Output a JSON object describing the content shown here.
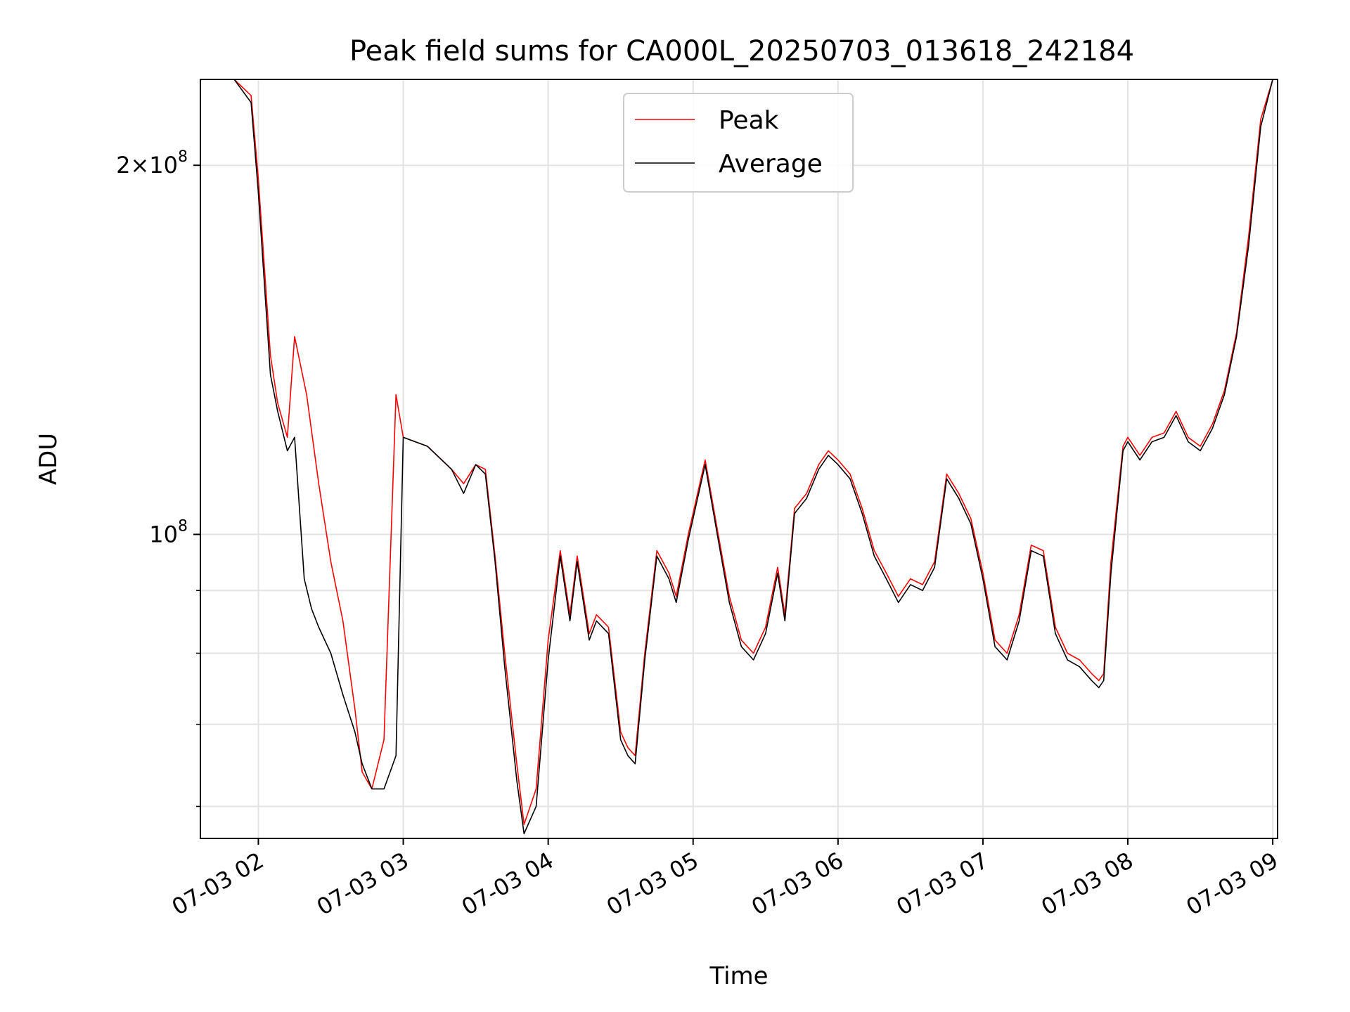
{
  "chart_data": {
    "type": "line",
    "title": "Peak field sums for CA000L_20250703_013618_242184",
    "xlabel": "Time",
    "ylabel": "ADU",
    "yscale": "log",
    "ylim": [
      56500000,
      235000000
    ],
    "xlim": [
      "2025-07-03 01:36",
      "2025-07-03 09:02"
    ],
    "grid": true,
    "legend_position": "top-center",
    "x_ticks": [
      {
        "t": "2025-07-03 02:00",
        "label": "07-03 02"
      },
      {
        "t": "2025-07-03 03:00",
        "label": "07-03 03"
      },
      {
        "t": "2025-07-03 04:00",
        "label": "07-03 04"
      },
      {
        "t": "2025-07-03 05:00",
        "label": "07-03 05"
      },
      {
        "t": "2025-07-03 06:00",
        "label": "07-03 06"
      },
      {
        "t": "2025-07-03 07:00",
        "label": "07-03 07"
      },
      {
        "t": "2025-07-03 08:00",
        "label": "07-03 08"
      },
      {
        "t": "2025-07-03 09:00",
        "label": "07-03 09"
      }
    ],
    "y_ticks": [
      {
        "v": 200000000,
        "base": "2×10",
        "exp": "8"
      },
      {
        "v": 100000000,
        "base": "10",
        "exp": "8"
      }
    ],
    "y_minor": [
      60000000,
      70000000,
      80000000,
      90000000
    ],
    "series": [
      {
        "name": "Peak",
        "color": "#ff0000",
        "x": [
          "2025-07-03 01:36",
          "2025-07-03 01:50",
          "2025-07-03 01:57",
          "2025-07-03 02:00",
          "2025-07-03 02:05",
          "2025-07-03 02:08",
          "2025-07-03 02:12",
          "2025-07-03 02:15",
          "2025-07-03 02:20",
          "2025-07-03 02:25",
          "2025-07-03 02:30",
          "2025-07-03 02:35",
          "2025-07-03 02:40",
          "2025-07-03 02:43",
          "2025-07-03 02:47",
          "2025-07-03 02:52",
          "2025-07-03 02:57",
          "2025-07-03 03:00",
          "2025-07-03 03:10",
          "2025-07-03 03:20",
          "2025-07-03 03:25",
          "2025-07-03 03:30",
          "2025-07-03 03:34",
          "2025-07-03 03:38",
          "2025-07-03 03:42",
          "2025-07-03 03:47",
          "2025-07-03 03:50",
          "2025-07-03 03:55",
          "2025-07-03 04:00",
          "2025-07-03 04:05",
          "2025-07-03 04:09",
          "2025-07-03 04:12",
          "2025-07-03 04:17",
          "2025-07-03 04:20",
          "2025-07-03 04:25",
          "2025-07-03 04:30",
          "2025-07-03 04:33",
          "2025-07-03 04:36",
          "2025-07-03 04:40",
          "2025-07-03 04:45",
          "2025-07-03 04:50",
          "2025-07-03 04:53",
          "2025-07-03 04:58",
          "2025-07-03 05:05",
          "2025-07-03 05:10",
          "2025-07-03 05:15",
          "2025-07-03 05:20",
          "2025-07-03 05:25",
          "2025-07-03 05:30",
          "2025-07-03 05:35",
          "2025-07-03 05:38",
          "2025-07-03 05:42",
          "2025-07-03 05:47",
          "2025-07-03 05:52",
          "2025-07-03 05:56",
          "2025-07-03 06:00",
          "2025-07-03 06:05",
          "2025-07-03 06:10",
          "2025-07-03 06:15",
          "2025-07-03 06:20",
          "2025-07-03 06:25",
          "2025-07-03 06:30",
          "2025-07-03 06:35",
          "2025-07-03 06:40",
          "2025-07-03 06:45",
          "2025-07-03 06:50",
          "2025-07-03 06:55",
          "2025-07-03 07:00",
          "2025-07-03 07:05",
          "2025-07-03 07:10",
          "2025-07-03 07:15",
          "2025-07-03 07:20",
          "2025-07-03 07:25",
          "2025-07-03 07:30",
          "2025-07-03 07:35",
          "2025-07-03 07:40",
          "2025-07-03 07:45",
          "2025-07-03 07:48",
          "2025-07-03 07:50",
          "2025-07-03 07:53",
          "2025-07-03 07:58",
          "2025-07-03 08:00",
          "2025-07-03 08:05",
          "2025-07-03 08:10",
          "2025-07-03 08:15",
          "2025-07-03 08:20",
          "2025-07-03 08:25",
          "2025-07-03 08:30",
          "2025-07-03 08:35",
          "2025-07-03 08:40",
          "2025-07-03 08:45",
          "2025-07-03 08:50",
          "2025-07-03 08:55",
          "2025-07-03 09:00",
          "2025-07-03 09:02"
        ],
        "y": [
          235000000,
          235000000,
          228000000,
          195000000,
          140000000,
          128000000,
          120000000,
          145000000,
          130000000,
          110000000,
          95000000,
          85000000,
          72000000,
          64000000,
          62000000,
          68000000,
          130000000,
          120000000,
          118000000,
          113000000,
          110000000,
          114000000,
          113000000,
          96000000,
          80000000,
          65000000,
          58000000,
          62000000,
          82000000,
          97000000,
          86000000,
          96000000,
          83000000,
          86000000,
          84000000,
          69000000,
          67000000,
          66000000,
          80000000,
          97000000,
          93000000,
          89000000,
          100000000,
          115000000,
          101000000,
          89000000,
          82000000,
          80000000,
          84000000,
          94000000,
          86000000,
          105000000,
          108000000,
          114000000,
          117000000,
          115000000,
          112000000,
          105000000,
          97000000,
          93000000,
          89000000,
          92000000,
          91000000,
          95000000,
          112000000,
          108000000,
          103000000,
          93000000,
          82000000,
          80000000,
          86000000,
          98000000,
          97000000,
          84000000,
          80000000,
          79000000,
          77000000,
          76000000,
          77000000,
          95000000,
          118000000,
          120000000,
          116000000,
          120000000,
          121000000,
          126000000,
          120000000,
          118000000,
          123000000,
          131000000,
          146000000,
          175000000,
          218000000,
          235000000,
          235000000
        ]
      },
      {
        "name": "Average",
        "color": "#000000",
        "x": [
          "2025-07-03 01:36",
          "2025-07-03 01:50",
          "2025-07-03 01:57",
          "2025-07-03 02:00",
          "2025-07-03 02:05",
          "2025-07-03 02:08",
          "2025-07-03 02:12",
          "2025-07-03 02:15",
          "2025-07-03 02:19",
          "2025-07-03 02:22",
          "2025-07-03 02:25",
          "2025-07-03 02:30",
          "2025-07-03 02:35",
          "2025-07-03 02:40",
          "2025-07-03 02:43",
          "2025-07-03 02:47",
          "2025-07-03 02:52",
          "2025-07-03 02:57",
          "2025-07-03 03:00",
          "2025-07-03 03:10",
          "2025-07-03 03:20",
          "2025-07-03 03:25",
          "2025-07-03 03:30",
          "2025-07-03 03:34",
          "2025-07-03 03:38",
          "2025-07-03 03:42",
          "2025-07-03 03:47",
          "2025-07-03 03:50",
          "2025-07-03 03:55",
          "2025-07-03 04:00",
          "2025-07-03 04:05",
          "2025-07-03 04:09",
          "2025-07-03 04:12",
          "2025-07-03 04:17",
          "2025-07-03 04:20",
          "2025-07-03 04:25",
          "2025-07-03 04:30",
          "2025-07-03 04:33",
          "2025-07-03 04:36",
          "2025-07-03 04:40",
          "2025-07-03 04:45",
          "2025-07-03 04:50",
          "2025-07-03 04:53",
          "2025-07-03 04:58",
          "2025-07-03 05:05",
          "2025-07-03 05:10",
          "2025-07-03 05:15",
          "2025-07-03 05:20",
          "2025-07-03 05:25",
          "2025-07-03 05:30",
          "2025-07-03 05:35",
          "2025-07-03 05:38",
          "2025-07-03 05:42",
          "2025-07-03 05:47",
          "2025-07-03 05:52",
          "2025-07-03 05:56",
          "2025-07-03 06:00",
          "2025-07-03 06:05",
          "2025-07-03 06:10",
          "2025-07-03 06:15",
          "2025-07-03 06:20",
          "2025-07-03 06:25",
          "2025-07-03 06:30",
          "2025-07-03 06:35",
          "2025-07-03 06:40",
          "2025-07-03 06:45",
          "2025-07-03 06:50",
          "2025-07-03 06:55",
          "2025-07-03 07:00",
          "2025-07-03 07:05",
          "2025-07-03 07:10",
          "2025-07-03 07:15",
          "2025-07-03 07:20",
          "2025-07-03 07:25",
          "2025-07-03 07:30",
          "2025-07-03 07:35",
          "2025-07-03 07:40",
          "2025-07-03 07:45",
          "2025-07-03 07:48",
          "2025-07-03 07:50",
          "2025-07-03 07:53",
          "2025-07-03 07:58",
          "2025-07-03 08:00",
          "2025-07-03 08:05",
          "2025-07-03 08:10",
          "2025-07-03 08:15",
          "2025-07-03 08:20",
          "2025-07-03 08:25",
          "2025-07-03 08:30",
          "2025-07-03 08:35",
          "2025-07-03 08:40",
          "2025-07-03 08:45",
          "2025-07-03 08:50",
          "2025-07-03 08:55",
          "2025-07-03 09:00",
          "2025-07-03 09:02"
        ],
        "y": [
          235000000,
          235000000,
          225000000,
          190000000,
          135000000,
          126000000,
          117000000,
          120000000,
          92000000,
          87000000,
          84000000,
          80000000,
          74000000,
          69000000,
          65000000,
          62000000,
          62000000,
          66000000,
          120000000,
          118000000,
          113000000,
          108000000,
          114000000,
          112000000,
          95000000,
          78000000,
          63000000,
          57000000,
          60000000,
          79000000,
          96000000,
          85000000,
          95000000,
          82000000,
          85000000,
          83000000,
          68000000,
          66000000,
          65000000,
          79000000,
          96000000,
          92000000,
          88000000,
          99000000,
          114000000,
          100000000,
          88000000,
          81000000,
          79000000,
          83000000,
          93000000,
          85000000,
          104000000,
          107000000,
          113000000,
          116000000,
          114000000,
          111000000,
          104000000,
          96000000,
          92000000,
          88000000,
          91000000,
          90000000,
          94000000,
          111000000,
          107000000,
          102000000,
          92000000,
          81000000,
          79000000,
          85000000,
          97000000,
          96000000,
          83000000,
          79000000,
          78000000,
          76000000,
          75000000,
          76000000,
          93000000,
          117000000,
          119000000,
          115000000,
          119000000,
          120000000,
          125000000,
          119000000,
          117000000,
          122000000,
          130000000,
          145000000,
          172000000,
          215000000,
          235000000,
          235000000
        ]
      }
    ]
  }
}
